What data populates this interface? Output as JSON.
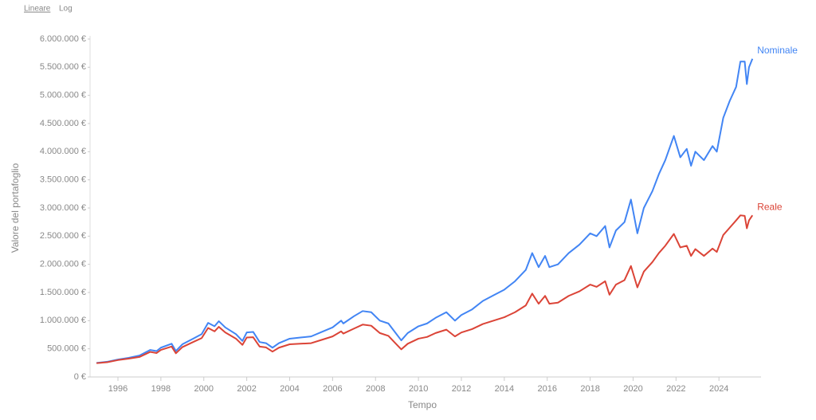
{
  "chart_data": {
    "type": "line",
    "scale_options": [
      "Lineare",
      "Log"
    ],
    "log_scale": false,
    "x_label": "Tempo",
    "y_label": "Valore del portafoglio",
    "xlim": [
      1994.7,
      2025.96
    ],
    "xticks": [
      1996,
      1998,
      2000,
      2002,
      2004,
      2006,
      2008,
      2010,
      2012,
      2014,
      2016,
      2018,
      2020,
      2022,
      2024
    ],
    "ylim": [
      0,
      6000000
    ],
    "yticks": [
      {
        "value": 0,
        "label": "0 €"
      },
      {
        "value": 500000,
        "label": "500.000 €"
      },
      {
        "value": 1000000,
        "label": "1.000.000 €"
      },
      {
        "value": 1500000,
        "label": "1.500.000 €"
      },
      {
        "value": 2000000,
        "label": "2.000.000 €"
      },
      {
        "value": 2500000,
        "label": "2.500.000 €"
      },
      {
        "value": 3000000,
        "label": "3.000.000 €"
      },
      {
        "value": 3500000,
        "label": "3.500.000 €"
      },
      {
        "value": 4000000,
        "label": "4.000.000 €"
      },
      {
        "value": 4500000,
        "label": "4.500.000 €"
      },
      {
        "value": 5000000,
        "label": "5.000.000 €"
      },
      {
        "value": 5500000,
        "label": "5.500.000 €"
      },
      {
        "value": 6000000,
        "label": "6.000.000 €"
      }
    ],
    "grid": false,
    "x": [
      1995.0,
      1995.5,
      1996.0,
      1996.5,
      1997.0,
      1997.5,
      1997.8,
      1998.0,
      1998.5,
      1998.7,
      1999.0,
      1999.5,
      1999.9,
      2000.2,
      2000.5,
      2000.7,
      2001.0,
      2001.5,
      2001.8,
      2002.0,
      2002.3,
      2002.6,
      2002.9,
      2003.2,
      2003.5,
      2004.0,
      2004.5,
      2005.0,
      2005.5,
      2006.0,
      2006.4,
      2006.5,
      2007.0,
      2007.4,
      2007.8,
      2008.2,
      2008.6,
      2008.9,
      2009.2,
      2009.5,
      2010.0,
      2010.4,
      2010.8,
      2011.3,
      2011.7,
      2012.0,
      2012.5,
      2013.0,
      2013.5,
      2014.0,
      2014.5,
      2015.0,
      2015.3,
      2015.6,
      2015.9,
      2016.1,
      2016.5,
      2017.0,
      2017.5,
      2018.0,
      2018.3,
      2018.7,
      2018.9,
      2019.2,
      2019.6,
      2019.9,
      2020.2,
      2020.5,
      2020.9,
      2021.2,
      2021.5,
      2021.9,
      2022.2,
      2022.5,
      2022.7,
      2022.9,
      2023.3,
      2023.7,
      2023.9,
      2024.2,
      2024.5,
      2024.8,
      2025.0,
      2025.2,
      2025.3,
      2025.4,
      2025.56
    ],
    "series": [
      {
        "name": "Nominale",
        "color": "#4285f4",
        "values": [
          250000,
          270000,
          310000,
          340000,
          380000,
          480000,
          460000,
          520000,
          590000,
          460000,
          580000,
          680000,
          760000,
          960000,
          900000,
          990000,
          880000,
          760000,
          640000,
          790000,
          800000,
          620000,
          600000,
          520000,
          600000,
          680000,
          700000,
          720000,
          800000,
          880000,
          1000000,
          950000,
          1080000,
          1170000,
          1150000,
          1000000,
          950000,
          800000,
          650000,
          780000,
          900000,
          950000,
          1050000,
          1150000,
          1000000,
          1100000,
          1200000,
          1350000,
          1450000,
          1550000,
          1700000,
          1900000,
          2200000,
          1950000,
          2150000,
          1950000,
          2000000,
          2200000,
          2350000,
          2550000,
          2500000,
          2680000,
          2300000,
          2600000,
          2750000,
          3150000,
          2550000,
          3000000,
          3300000,
          3600000,
          3850000,
          4280000,
          3900000,
          4050000,
          3750000,
          4000000,
          3850000,
          4100000,
          4000000,
          4600000,
          4900000,
          5150000,
          5600000,
          5600000,
          5200000,
          5500000,
          5650000
        ]
      },
      {
        "name": "Reale",
        "color": "#db4437",
        "values": [
          245000,
          262000,
          300000,
          325000,
          355000,
          445000,
          425000,
          480000,
          540000,
          420000,
          530000,
          620000,
          690000,
          870000,
          810000,
          890000,
          790000,
          680000,
          570000,
          700000,
          705000,
          540000,
          525000,
          450000,
          520000,
          580000,
          590000,
          600000,
          660000,
          720000,
          810000,
          770000,
          860000,
          930000,
          910000,
          780000,
          730000,
          610000,
          490000,
          590000,
          680000,
          710000,
          780000,
          840000,
          720000,
          790000,
          850000,
          940000,
          1000000,
          1060000,
          1150000,
          1270000,
          1480000,
          1300000,
          1440000,
          1300000,
          1320000,
          1440000,
          1520000,
          1640000,
          1600000,
          1700000,
          1460000,
          1640000,
          1720000,
          1970000,
          1590000,
          1870000,
          2040000,
          2200000,
          2330000,
          2540000,
          2300000,
          2330000,
          2150000,
          2270000,
          2150000,
          2280000,
          2220000,
          2520000,
          2650000,
          2780000,
          2870000,
          2860000,
          2640000,
          2780000,
          2870000
        ]
      }
    ]
  }
}
